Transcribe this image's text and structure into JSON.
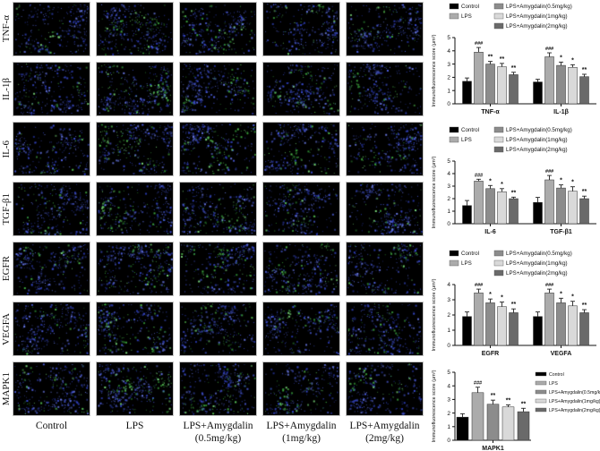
{
  "micro_grid": {
    "rows": [
      {
        "label": "TNF-α"
      },
      {
        "label": "IL-1β"
      },
      {
        "label": "IL-6"
      },
      {
        "label": "TGF-β1"
      },
      {
        "label": "EGFR"
      },
      {
        "label": "VEGFA"
      },
      {
        "label": "MAPK1"
      }
    ],
    "columns": [
      {
        "label_line1": "Control",
        "label_line2": "",
        "green_level": 0.35
      },
      {
        "label_line1": "LPS",
        "label_line2": "",
        "green_level": 1.0
      },
      {
        "label_line1": "LPS+Amygdalin",
        "label_line2": "(0.5mg/kg)",
        "green_level": 0.75
      },
      {
        "label_line1": "LPS+Amygdalin",
        "label_line2": "(1mg/kg)",
        "green_level": 0.55
      },
      {
        "label_line1": "LPS+Amygdalin",
        "label_line2": "(2mg/kg)",
        "green_level": 0.4
      }
    ],
    "stain_colors": {
      "nuclei_blue": "#3a4cd6",
      "marker_green": "#45b54a",
      "background": "#000000"
    }
  },
  "legend": {
    "entries": [
      {
        "label": "Control",
        "color": "#000000"
      },
      {
        "label": "LPS",
        "color": "#ababab"
      },
      {
        "label": "LPS+Amygdalin(0.5mg/kg)",
        "color": "#8c8c8c"
      },
      {
        "label": "LPS+Amygdalin(1mg/kg)",
        "color": "#d9d9d9"
      },
      {
        "label": "LPS+Amygdalin(2mg/kg)",
        "color": "#6a6a6a"
      }
    ]
  },
  "chart_data": [
    {
      "type": "bar",
      "ylabel": "Immunofluorescence score (μm²)",
      "ylim": [
        0,
        5
      ],
      "yticks": [
        0,
        1,
        2,
        3,
        4,
        5
      ],
      "legend_position": "top",
      "series_names": [
        "Control",
        "LPS",
        "LPS+Amygdalin(0.5mg/kg)",
        "LPS+Amygdalin(1mg/kg)",
        "LPS+Amygdalin(2mg/kg)"
      ],
      "groups": [
        {
          "label": "TNF-α",
          "values": [
            1.7,
            3.9,
            3.0,
            2.8,
            2.2
          ],
          "errors": [
            0.25,
            0.35,
            0.2,
            0.25,
            0.18
          ],
          "sig": [
            "",
            "###",
            "**",
            "**",
            "**"
          ]
        },
        {
          "label": "IL-1β",
          "values": [
            1.65,
            3.55,
            2.9,
            2.75,
            2.05
          ],
          "errors": [
            0.2,
            0.3,
            0.25,
            0.2,
            0.18
          ],
          "sig": [
            "",
            "###",
            "*",
            "*",
            "**"
          ]
        }
      ]
    },
    {
      "type": "bar",
      "ylabel": "Immunofluorescence score (μm²)",
      "ylim": [
        0,
        5
      ],
      "yticks": [
        0,
        1,
        2,
        3,
        4,
        5
      ],
      "legend_position": "top",
      "series_names": [
        "Control",
        "LPS",
        "LPS+Amygdalin(0.5mg/kg)",
        "LPS+Amygdalin(1mg/kg)",
        "LPS+Amygdalin(2mg/kg)"
      ],
      "groups": [
        {
          "label": "IL-6",
          "values": [
            1.45,
            3.4,
            2.8,
            2.55,
            2.0
          ],
          "errors": [
            0.4,
            0.15,
            0.25,
            0.25,
            0.12
          ],
          "sig": [
            "",
            "###",
            "*",
            "*",
            "**"
          ]
        },
        {
          "label": "TGF-β1",
          "values": [
            1.7,
            3.5,
            2.85,
            2.6,
            2.0
          ],
          "errors": [
            0.4,
            0.35,
            0.25,
            0.35,
            0.2
          ],
          "sig": [
            "",
            "###",
            "*",
            "*",
            "**"
          ]
        }
      ]
    },
    {
      "type": "bar",
      "ylabel": "Immunofluorescence score (μm²)",
      "ylim": [
        0,
        4
      ],
      "yticks": [
        0,
        1,
        2,
        3,
        4
      ],
      "legend_position": "top",
      "series_names": [
        "Control",
        "LPS",
        "LPS+Amygdalin(0.5mg/kg)",
        "LPS+Amygdalin(1mg/kg)",
        "LPS+Amygdalin(2mg/kg)"
      ],
      "groups": [
        {
          "label": "EGFR",
          "values": [
            1.9,
            3.45,
            2.8,
            2.55,
            2.15
          ],
          "errors": [
            0.3,
            0.25,
            0.25,
            0.3,
            0.25
          ],
          "sig": [
            "",
            "###",
            "*",
            "*",
            "**"
          ]
        },
        {
          "label": "VEGFA",
          "values": [
            1.9,
            3.45,
            2.8,
            2.6,
            2.15
          ],
          "errors": [
            0.3,
            0.25,
            0.3,
            0.3,
            0.2
          ],
          "sig": [
            "",
            "###",
            "*",
            "*",
            "**"
          ]
        }
      ]
    },
    {
      "type": "bar",
      "ylabel": "Immunofluorescence score (μm²)",
      "ylim": [
        0,
        5
      ],
      "yticks": [
        0,
        1,
        2,
        3,
        4,
        5
      ],
      "legend_position": "right",
      "series_names": [
        "Control",
        "LPS",
        "LPS+Amygdalin(0.5mg/kg)",
        "LPS+Amygdalin(1mg/kg)",
        "LPS+Amygdalin(2mg/kg)"
      ],
      "groups": [
        {
          "label": "MAPK1",
          "values": [
            1.7,
            3.5,
            2.65,
            2.45,
            2.1
          ],
          "errors": [
            0.25,
            0.4,
            0.3,
            0.15,
            0.25
          ],
          "sig": [
            "",
            "###",
            "**",
            "**",
            "**"
          ]
        }
      ]
    }
  ]
}
